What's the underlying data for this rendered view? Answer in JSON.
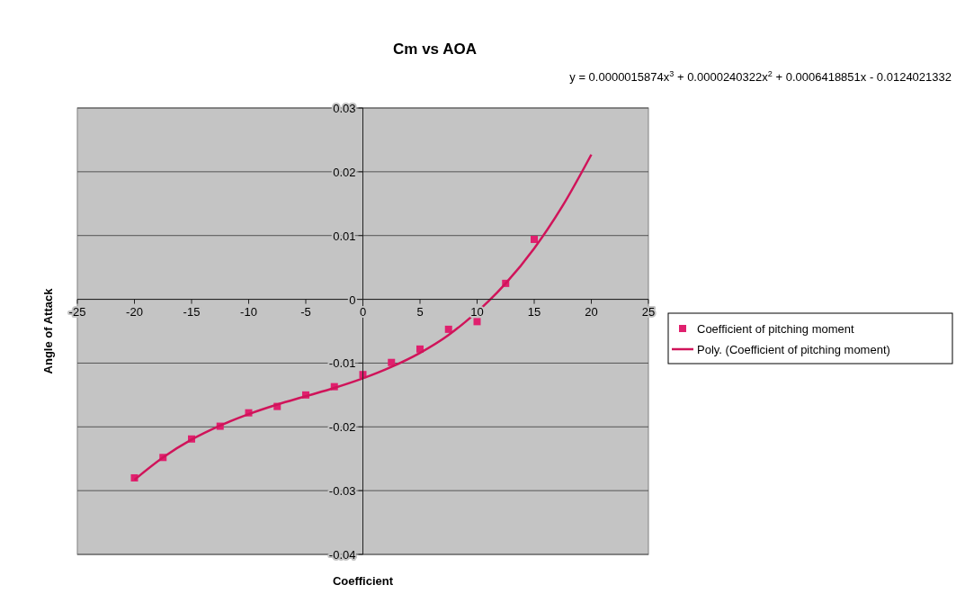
{
  "chart_data": {
    "type": "scatter",
    "title": "Cm vs AOA",
    "xlabel": "Coefficient",
    "ylabel": "Angle of Attack",
    "annotations": [
      "y = 0.0000015874x$^{3}$ + 0.0000240322x$^{2}$ + 0.0006418851x - 0.0124021332"
    ],
    "x": [
      -20,
      -17.5,
      -15,
      -12.5,
      -10,
      -7.5,
      -5,
      -2.5,
      0,
      2.5,
      5,
      7.5,
      10,
      12.5,
      15
    ],
    "series": [
      {
        "name": "Coefficient of pitching moment",
        "type": "scatter",
        "color": "#e0206e",
        "marker": "square",
        "values": [
          -0.028,
          -0.0248,
          -0.0219,
          -0.0199,
          -0.0178,
          -0.0168,
          -0.015,
          -0.0137,
          -0.0118,
          -0.0099,
          -0.0078,
          -0.0047,
          -0.0035,
          0.0025,
          0.0094
        ]
      },
      {
        "name": "Poly. (Coefficient of pitching moment)",
        "type": "line",
        "color": "#d0145a",
        "marker": "none",
        "line_style": "solid",
        "x": [
          -20,
          -17.5,
          -15,
          -12.5,
          -10,
          -7.5,
          -5,
          -2.5,
          0,
          2.5,
          5,
          7.5,
          9,
          11,
          12.5,
          15,
          17.5,
          20
        ],
        "values": [
          -0.0283,
          -0.0248,
          -0.022,
          -0.0198,
          -0.018,
          -0.0165,
          -0.0152,
          -0.0139,
          -0.0124,
          -0.0106,
          -0.0084,
          -0.0056,
          -0.0035,
          -0.0003,
          0.0025,
          0.008,
          0.0147,
          0.0227
        ]
      }
    ],
    "xlim": [
      -25,
      25
    ],
    "xticks": [
      -25,
      -20,
      -15,
      -10,
      -5,
      0,
      5,
      10,
      15,
      20,
      25
    ],
    "ylim": [
      -0.04,
      0.03
    ],
    "yticks": [
      -0.04,
      -0.03,
      -0.02,
      -0.01,
      0,
      0.01,
      0.02,
      0.03
    ],
    "grid": "y",
    "legend": "right"
  }
}
